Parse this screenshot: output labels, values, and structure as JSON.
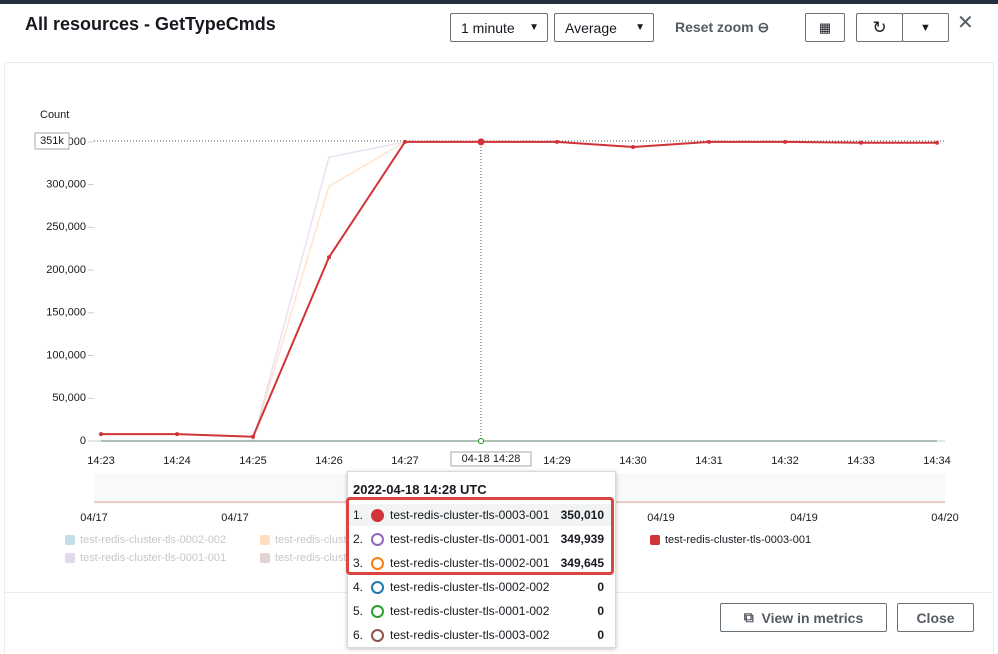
{
  "header": {
    "title": "All resources - GetTypeCmds",
    "period": "1 minute",
    "statistic": "Average",
    "reset_zoom": "Reset zoom"
  },
  "chart_data": {
    "type": "line",
    "y_label": "Count",
    "categories": [
      "14:23",
      "14:24",
      "14:25",
      "14:26",
      "14:27",
      "14:28",
      "14:29",
      "14:30",
      "14:31",
      "14:32",
      "14:33",
      "14:34"
    ],
    "ylim": [
      0,
      351000
    ],
    "yticks": [
      0,
      {
        "value": 50000,
        "label": "50,000"
      },
      {
        "value": 100000,
        "label": "100,000"
      },
      {
        "value": 150000,
        "label": "150,000"
      },
      {
        "value": 200000,
        "label": "200,000"
      },
      {
        "value": 250000,
        "label": "250,000"
      },
      {
        "value": 300000,
        "label": "300,000"
      },
      {
        "value": 350000,
        "label": "350,000"
      }
    ],
    "crosshair": {
      "y": 351000,
      "y_label": "351k",
      "x_label": "04-18 14:28"
    },
    "series": [
      {
        "name": "test-redis-cluster-tls-0002-002",
        "color": "#1f77b4",
        "faded": true,
        "values": [
          0,
          0,
          0,
          0,
          0,
          0,
          0,
          0,
          0,
          0,
          0,
          0
        ]
      },
      {
        "name": "test-redis-cluster-tls-0001-001",
        "color": "#9467bd",
        "faded": true,
        "values": [
          null,
          null,
          0,
          332000,
          350000,
          349939,
          349500,
          344000,
          349500,
          349500,
          349000,
          349000
        ]
      },
      {
        "name": "test-redis-cluster-tls-0002-001",
        "color": "#ff7f0e",
        "faded": true,
        "values": [
          null,
          null,
          0,
          298000,
          350000,
          349645,
          349500,
          344000,
          349500,
          349500,
          349000,
          349000
        ]
      },
      {
        "name": "test-redis-cluster-tls-0003-002",
        "color": "#8c564b",
        "faded": true,
        "values": [
          0,
          0,
          0,
          0,
          0,
          0,
          0,
          0,
          0,
          0,
          0,
          0
        ]
      },
      {
        "name": "test-redis-cluster-tls-0001-002",
        "color": "#2ca02c",
        "faded": true,
        "values": [
          0,
          0,
          0,
          0,
          0,
          0,
          0,
          0,
          0,
          0,
          0,
          0
        ]
      },
      {
        "name": "test-redis-cluster-tls-0003-001",
        "color": "#d13438",
        "faded": false,
        "values": [
          8000,
          8000,
          5000,
          215000,
          350000,
          350010,
          350000,
          344000,
          350000,
          350000,
          349000,
          349000
        ]
      }
    ],
    "navigator": {
      "labels": [
        "04/17",
        "04/17",
        "04/19",
        "04/19",
        "04/20"
      ]
    }
  },
  "tooltip": {
    "title": "2022-04-18 14:28 UTC",
    "rows": [
      {
        "rank": "1.",
        "name": "test-redis-cluster-tls-0003-001",
        "value": "350,010",
        "color": "#d13438"
      },
      {
        "rank": "2.",
        "name": "test-redis-cluster-tls-0001-001",
        "value": "349,939",
        "color": "#9467bd"
      },
      {
        "rank": "3.",
        "name": "test-redis-cluster-tls-0002-001",
        "value": "349,645",
        "color": "#ff7f0e"
      },
      {
        "rank": "4.",
        "name": "test-redis-cluster-tls-0002-002",
        "value": "0",
        "color": "#1f77b4"
      },
      {
        "rank": "5.",
        "name": "test-redis-cluster-tls-0001-002",
        "value": "0",
        "color": "#2ca02c"
      },
      {
        "rank": "6.",
        "name": "test-redis-cluster-tls-0003-002",
        "value": "0",
        "color": "#8c564b"
      }
    ]
  },
  "footer": {
    "view": "View in metrics",
    "close": "Close"
  }
}
